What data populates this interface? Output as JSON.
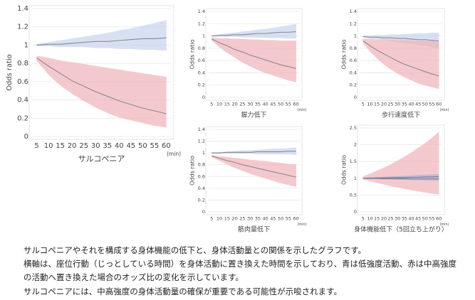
{
  "chart_data": [
    {
      "type": "line",
      "xlabel": "サルコペニア",
      "ylabel": "Odds ratio",
      "x_unit": "(min)",
      "x": [
        5,
        10,
        15,
        20,
        25,
        30,
        35,
        40,
        45,
        50,
        55,
        60
      ],
      "xlim": [
        3,
        62
      ],
      "xticks": [
        5,
        10,
        15,
        20,
        25,
        30,
        35,
        40,
        45,
        50,
        55,
        60
      ],
      "ylim": [
        0,
        1.4
      ],
      "yticks": [
        0,
        0.2,
        0.4,
        0.6,
        0.8,
        1,
        1.2,
        1.4
      ],
      "grid": true,
      "series": [
        {
          "color": "#8a8a8a",
          "band_color": "#c7d5ee",
          "values": [
            1.0,
            1.01,
            1.01,
            1.02,
            1.03,
            1.04,
            1.04,
            1.05,
            1.06,
            1.07,
            1.07,
            1.08
          ],
          "upper": [
            1.01,
            1.03,
            1.05,
            1.07,
            1.09,
            1.11,
            1.13,
            1.16,
            1.18,
            1.21,
            1.24,
            1.27
          ],
          "lower": [
            0.99,
            0.99,
            0.98,
            0.98,
            0.98,
            0.97,
            0.97,
            0.96,
            0.96,
            0.95,
            0.95,
            0.94
          ]
        },
        {
          "color": "#8a8a8a",
          "band_color": "#f0b3b8",
          "values": [
            0.86,
            0.77,
            0.69,
            0.61,
            0.55,
            0.49,
            0.44,
            0.39,
            0.35,
            0.31,
            0.28,
            0.25
          ],
          "upper": [
            0.88,
            0.86,
            0.83,
            0.81,
            0.79,
            0.77,
            0.75,
            0.73,
            0.71,
            0.69,
            0.67,
            0.65
          ],
          "lower": [
            0.83,
            0.68,
            0.56,
            0.47,
            0.39,
            0.32,
            0.26,
            0.21,
            0.18,
            0.15,
            0.12,
            0.1
          ]
        }
      ]
    },
    {
      "type": "line",
      "xlabel": "握力低下",
      "ylabel": "Odds ratio",
      "x_unit": "(min)",
      "x": [
        5,
        10,
        15,
        20,
        25,
        30,
        35,
        40,
        45,
        50,
        55,
        60
      ],
      "xlim": [
        3,
        62
      ],
      "xticks": [
        5,
        10,
        15,
        20,
        25,
        30,
        35,
        40,
        45,
        50,
        55,
        60
      ],
      "ylim": [
        0,
        1.4
      ],
      "yticks": [
        0,
        0.2,
        0.4,
        0.6,
        0.8,
        1,
        1.2,
        1.4
      ],
      "grid": true,
      "series": [
        {
          "color": "#8a8a8a",
          "band_color": "#c7d5ee",
          "values": [
            1.0,
            1.01,
            1.01,
            1.02,
            1.02,
            1.03,
            1.04,
            1.04,
            1.05,
            1.06,
            1.06,
            1.07
          ],
          "upper": [
            1.01,
            1.02,
            1.04,
            1.05,
            1.07,
            1.08,
            1.1,
            1.11,
            1.13,
            1.15,
            1.17,
            1.19
          ],
          "lower": [
            0.99,
            0.99,
            0.99,
            0.99,
            0.98,
            0.98,
            0.98,
            0.97,
            0.97,
            0.97,
            0.96,
            0.96
          ]
        },
        {
          "color": "#8a8a8a",
          "band_color": "#f0b3b8",
          "values": [
            0.95,
            0.89,
            0.84,
            0.78,
            0.74,
            0.69,
            0.65,
            0.61,
            0.57,
            0.53,
            0.5,
            0.47
          ],
          "upper": [
            0.97,
            0.96,
            0.96,
            0.95,
            0.95,
            0.94,
            0.94,
            0.93,
            0.93,
            0.92,
            0.92,
            0.92
          ],
          "lower": [
            0.93,
            0.82,
            0.73,
            0.65,
            0.57,
            0.51,
            0.45,
            0.4,
            0.36,
            0.32,
            0.28,
            0.25
          ]
        }
      ]
    },
    {
      "type": "line",
      "xlabel": "歩行速度低下",
      "ylabel": "Odds ratio",
      "x_unit": "(min)",
      "x": [
        5,
        10,
        15,
        20,
        25,
        30,
        35,
        40,
        45,
        50,
        55,
        60
      ],
      "xlim": [
        3,
        62
      ],
      "xticks": [
        5,
        10,
        15,
        20,
        25,
        30,
        35,
        40,
        45,
        50,
        55,
        60
      ],
      "ylim": [
        0,
        1.4
      ],
      "yticks": [
        0,
        0.2,
        0.4,
        0.6,
        0.8,
        1,
        1.2,
        1.4
      ],
      "grid": true,
      "series": [
        {
          "color": "#8a8a8a",
          "band_color": "#c7d5ee",
          "values": [
            0.99,
            0.98,
            0.98,
            0.97,
            0.97,
            0.96,
            0.96,
            0.95,
            0.94,
            0.94,
            0.93,
            0.92
          ],
          "upper": [
            1.0,
            1.0,
            1.01,
            1.01,
            1.02,
            1.02,
            1.03,
            1.03,
            1.04,
            1.04,
            1.05,
            1.05
          ],
          "lower": [
            0.98,
            0.96,
            0.95,
            0.93,
            0.92,
            0.9,
            0.88,
            0.87,
            0.85,
            0.84,
            0.82,
            0.81
          ]
        },
        {
          "color": "#8a8a8a",
          "band_color": "#f0b3b8",
          "values": [
            0.92,
            0.84,
            0.77,
            0.71,
            0.65,
            0.59,
            0.54,
            0.5,
            0.46,
            0.42,
            0.38,
            0.35
          ],
          "upper": [
            0.95,
            0.95,
            0.94,
            0.94,
            0.94,
            0.93,
            0.93,
            0.93,
            0.92,
            0.92,
            0.92,
            0.91
          ],
          "lower": [
            0.89,
            0.75,
            0.64,
            0.54,
            0.46,
            0.39,
            0.33,
            0.28,
            0.23,
            0.2,
            0.17,
            0.14
          ]
        }
      ]
    },
    {
      "type": "line",
      "xlabel": "筋肉量低下",
      "ylabel": "Odds ratio",
      "x_unit": "(min)",
      "x": [
        5,
        10,
        15,
        20,
        25,
        30,
        35,
        40,
        45,
        50,
        55,
        60
      ],
      "xlim": [
        3,
        62
      ],
      "xticks": [
        5,
        10,
        15,
        20,
        25,
        30,
        35,
        40,
        45,
        50,
        55,
        60
      ],
      "ylim": [
        0,
        1.4
      ],
      "yticks": [
        0,
        0.2,
        0.4,
        0.6,
        0.8,
        1,
        1.2,
        1.4
      ],
      "grid": true,
      "series": [
        {
          "color": "#8a8a8a",
          "band_color": "#c7d5ee",
          "values": [
            1.0,
            1.0,
            1.01,
            1.01,
            1.01,
            1.01,
            1.02,
            1.02,
            1.02,
            1.02,
            1.03,
            1.03
          ],
          "upper": [
            1.01,
            1.01,
            1.02,
            1.03,
            1.04,
            1.04,
            1.05,
            1.06,
            1.07,
            1.07,
            1.08,
            1.09
          ],
          "lower": [
            0.99,
            0.99,
            0.99,
            0.99,
            0.99,
            0.99,
            0.98,
            0.98,
            0.98,
            0.98,
            0.98,
            0.97
          ]
        },
        {
          "color": "#8a8a8a",
          "band_color": "#f0b3b8",
          "values": [
            0.95,
            0.91,
            0.87,
            0.84,
            0.8,
            0.77,
            0.74,
            0.71,
            0.68,
            0.65,
            0.62,
            0.59
          ],
          "upper": [
            0.96,
            0.94,
            0.93,
            0.91,
            0.9,
            0.88,
            0.87,
            0.86,
            0.84,
            0.83,
            0.81,
            0.8
          ],
          "lower": [
            0.93,
            0.87,
            0.81,
            0.75,
            0.7,
            0.65,
            0.61,
            0.57,
            0.53,
            0.49,
            0.46,
            0.43
          ]
        }
      ]
    },
    {
      "type": "line",
      "xlabel": "身体機能低下（5回立ち上がり）",
      "ylabel": "Odds ratio",
      "x_unit": "(min)",
      "x": [
        5,
        10,
        15,
        20,
        25,
        30,
        35,
        40,
        45,
        50,
        55,
        60
      ],
      "xlim": [
        3,
        62
      ],
      "xticks": [
        5,
        10,
        15,
        20,
        25,
        30,
        35,
        40,
        45,
        50,
        55,
        60
      ],
      "ylim": [
        0,
        2.5
      ],
      "yticks": [
        0,
        0.5,
        1,
        1.5,
        2,
        2.5
      ],
      "grid": true,
      "series": [
        {
          "color": "#7a7a8a",
          "band_color": "#f0b3b8",
          "values": [
            1.0,
            1.0,
            1.0,
            0.99,
            0.99,
            0.99,
            0.99,
            0.98,
            0.98,
            0.98,
            0.98,
            0.98
          ],
          "upper": [
            1.05,
            1.13,
            1.22,
            1.31,
            1.41,
            1.52,
            1.64,
            1.76,
            1.9,
            2.04,
            2.2,
            2.37
          ],
          "lower": [
            0.97,
            0.92,
            0.87,
            0.82,
            0.77,
            0.73,
            0.69,
            0.65,
            0.62,
            0.58,
            0.55,
            0.52
          ]
        },
        {
          "color": "#7a7a8a",
          "band_color": "#a9b6dd",
          "values": [
            1.0,
            1.0,
            1.01,
            1.01,
            1.02,
            1.02,
            1.02,
            1.03,
            1.03,
            1.04,
            1.04,
            1.05
          ],
          "upper": [
            1.01,
            1.02,
            1.03,
            1.04,
            1.05,
            1.06,
            1.07,
            1.08,
            1.09,
            1.1,
            1.11,
            1.12
          ],
          "lower": [
            0.99,
            0.98,
            0.98,
            0.97,
            0.97,
            0.96,
            0.96,
            0.95,
            0.95,
            0.94,
            0.94,
            0.93
          ]
        }
      ]
    }
  ],
  "caption": [
    "サルコペニアやそれを構成する身体機能の低下と、身体活動量との関係を示したグラフです。",
    "横軸は、座位行動（じっとしている時間）を身体活動に置き換えた時間を示しており、青は低強度活動、赤は中高強度",
    "の活動へ置き換えた場合のオッズ比の変化を示しています。",
    "サルコペニアには、中高強度の身体活動量の確保が重要である可能性が示唆されます。"
  ]
}
